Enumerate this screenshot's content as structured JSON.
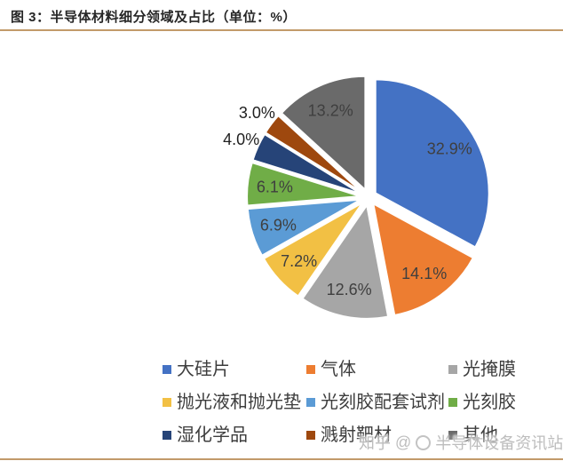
{
  "header": {
    "title": "图 3：半导体材料细分领域及占比（单位：%）"
  },
  "accent": {
    "rule_color": "#C29A6A",
    "background": "#FFFFFF"
  },
  "chart_data": {
    "type": "pie",
    "title": "半导体材料细分领域及占比",
    "unit": "%",
    "start_angle_deg": 0,
    "direction": "clockwise",
    "exploded": true,
    "legend_position": "bottom",
    "series": [
      {
        "name": "大硅片",
        "value": 32.9,
        "label": "32.9%",
        "color": "#4472C4"
      },
      {
        "name": "气体",
        "value": 14.1,
        "label": "14.1%",
        "color": "#ED7D31"
      },
      {
        "name": "光掩膜",
        "value": 12.6,
        "label": "12.6%",
        "color": "#A6A6A6"
      },
      {
        "name": "抛光液和抛光垫",
        "value": 7.2,
        "label": "7.2%",
        "color": "#F2C044"
      },
      {
        "name": "光刻胶配套试剂",
        "value": 6.9,
        "label": "6.9%",
        "color": "#5B9BD5"
      },
      {
        "name": "光刻胶",
        "value": 6.1,
        "label": "6.1%",
        "color": "#70AD47"
      },
      {
        "name": "湿化学品",
        "value": 4.0,
        "label": "4.0%",
        "color": "#264478"
      },
      {
        "name": "溅射靶材",
        "value": 3.0,
        "label": "3.0%",
        "color": "#9E480E"
      },
      {
        "name": "其他",
        "value": 13.2,
        "label": "13.2%",
        "color": "#6A6A6A"
      }
    ]
  },
  "watermark": {
    "brand": "知乎",
    "at": "@",
    "handle": "半导体设备资讯站"
  }
}
